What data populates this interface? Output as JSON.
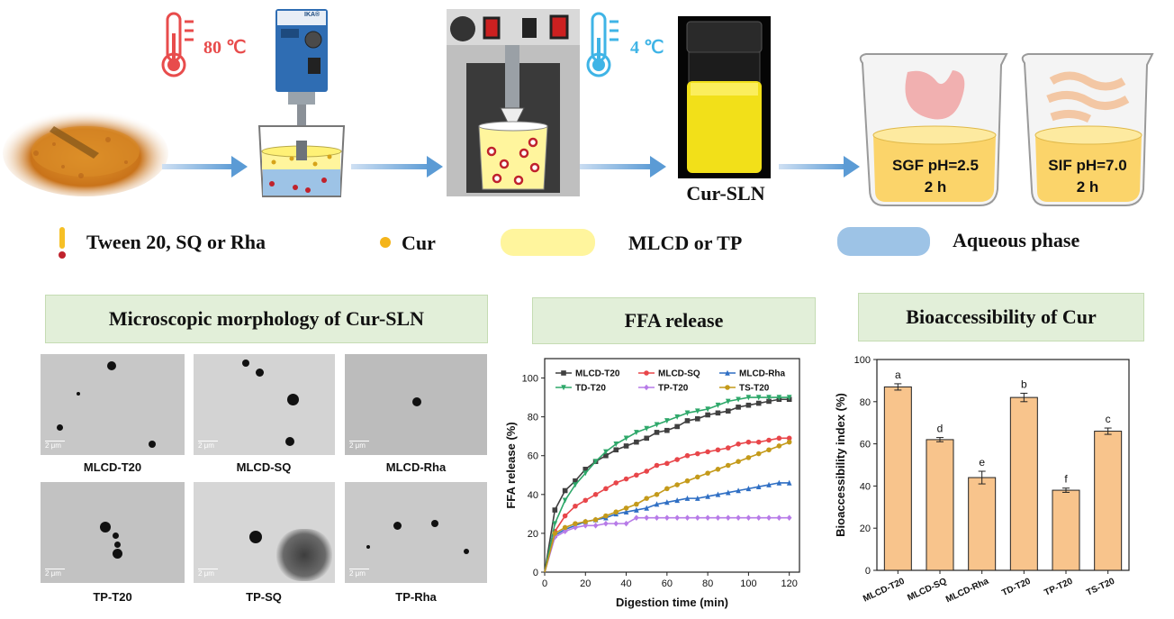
{
  "process": {
    "temp_hot": "80 ℃",
    "temp_cold": "4 ℃",
    "homogenizer_brand": "IKA®",
    "product_label": "Cur-SLN",
    "sgf_line1": "SGF pH=2.5",
    "sgf_line2": "2 h",
    "sif_line1": "SIF pH=7.0",
    "sif_line2": "2 h"
  },
  "legend": {
    "surfactant": "Tween 20, SQ or Rha",
    "cur": "Cur",
    "lipid": "MLCD or TP",
    "aqueous": "Aqueous phase"
  },
  "sections": {
    "morphology": "Microscopic morphology of Cur-SLN",
    "ffa": "FFA release",
    "bio": "Bioaccessibility of Cur"
  },
  "tem": {
    "scale_label": "2 μm",
    "labels": [
      "MLCD-T20",
      "MLCD-SQ",
      "MLCD-Rha",
      "TP-T20",
      "TP-SQ",
      "TP-Rha"
    ]
  },
  "colors": {
    "arrow": "#5b9bd5",
    "lipid": "#fff59d",
    "aqueous": "#9dc3e6",
    "bar": "#f8c48c",
    "hot": "#e84c4c",
    "cold": "#3fb4e6"
  },
  "chart_data": [
    {
      "type": "line",
      "xlabel": "Digestion time (min)",
      "ylabel": "FFA release (%)",
      "xlim": [
        0,
        125
      ],
      "ylim": [
        0,
        110
      ],
      "xticks": [
        0,
        20,
        40,
        60,
        80,
        100,
        120
      ],
      "yticks": [
        0,
        20,
        40,
        60,
        80,
        100
      ],
      "x": [
        0,
        5,
        10,
        15,
        20,
        25,
        30,
        35,
        40,
        45,
        50,
        55,
        60,
        65,
        70,
        75,
        80,
        85,
        90,
        95,
        100,
        105,
        110,
        115,
        120
      ],
      "series": [
        {
          "name": "MLCD-T20",
          "color": "#404040",
          "marker": "square",
          "values": [
            0,
            32,
            42,
            47,
            53,
            57,
            60,
            63,
            65,
            67,
            69,
            72,
            73,
            75,
            78,
            79,
            81,
            82,
            83,
            85,
            86,
            87,
            88,
            89,
            89
          ]
        },
        {
          "name": "MLCD-SQ",
          "color": "#e8464a",
          "marker": "circle",
          "values": [
            0,
            21,
            29,
            34,
            37,
            40,
            43,
            46,
            48,
            50,
            52,
            55,
            56,
            58,
            60,
            61,
            62,
            63,
            64,
            66,
            67,
            67,
            68,
            69,
            69
          ]
        },
        {
          "name": "MLCD-Rha",
          "color": "#2f6fc4",
          "marker": "triangle",
          "values": [
            0,
            19,
            22,
            24,
            26,
            27,
            28,
            30,
            31,
            32,
            33,
            35,
            36,
            37,
            38,
            38,
            39,
            40,
            41,
            42,
            43,
            44,
            45,
            46,
            46
          ]
        },
        {
          "name": "TD-T20",
          "color": "#2ea86a",
          "marker": "triangle-down",
          "values": [
            0,
            25,
            37,
            45,
            51,
            57,
            62,
            66,
            69,
            72,
            74,
            76,
            78,
            80,
            82,
            83,
            84,
            86,
            88,
            89,
            90,
            90,
            90,
            90,
            90
          ]
        },
        {
          "name": "TP-T20",
          "color": "#b77be8",
          "marker": "diamond",
          "values": [
            0,
            18,
            21,
            23,
            24,
            24,
            25,
            25,
            25,
            28,
            28,
            28,
            28,
            28,
            28,
            28,
            28,
            28,
            28,
            28,
            28,
            28,
            28,
            28,
            28
          ]
        },
        {
          "name": "TS-T20",
          "color": "#c49a1a",
          "marker": "hexagon",
          "values": [
            0,
            20,
            23,
            25,
            26,
            27,
            29,
            31,
            33,
            35,
            38,
            40,
            43,
            45,
            47,
            49,
            51,
            53,
            55,
            57,
            59,
            61,
            63,
            65,
            67
          ]
        }
      ]
    },
    {
      "type": "bar",
      "ylabel": "Bioaccessibility index (%)",
      "ylim": [
        0,
        100
      ],
      "yticks": [
        0,
        20,
        40,
        60,
        80,
        100
      ],
      "categories": [
        "MLCD-T20",
        "MLCD-SQ",
        "MLCD-Rha",
        "TD-T20",
        "TP-T20",
        "TS-T20"
      ],
      "values": [
        87,
        62,
        44,
        82,
        38,
        66
      ],
      "errors": [
        1.5,
        1.0,
        3.0,
        2.0,
        1.0,
        1.5
      ],
      "letters": [
        "a",
        "d",
        "e",
        "b",
        "f",
        "c"
      ]
    }
  ]
}
